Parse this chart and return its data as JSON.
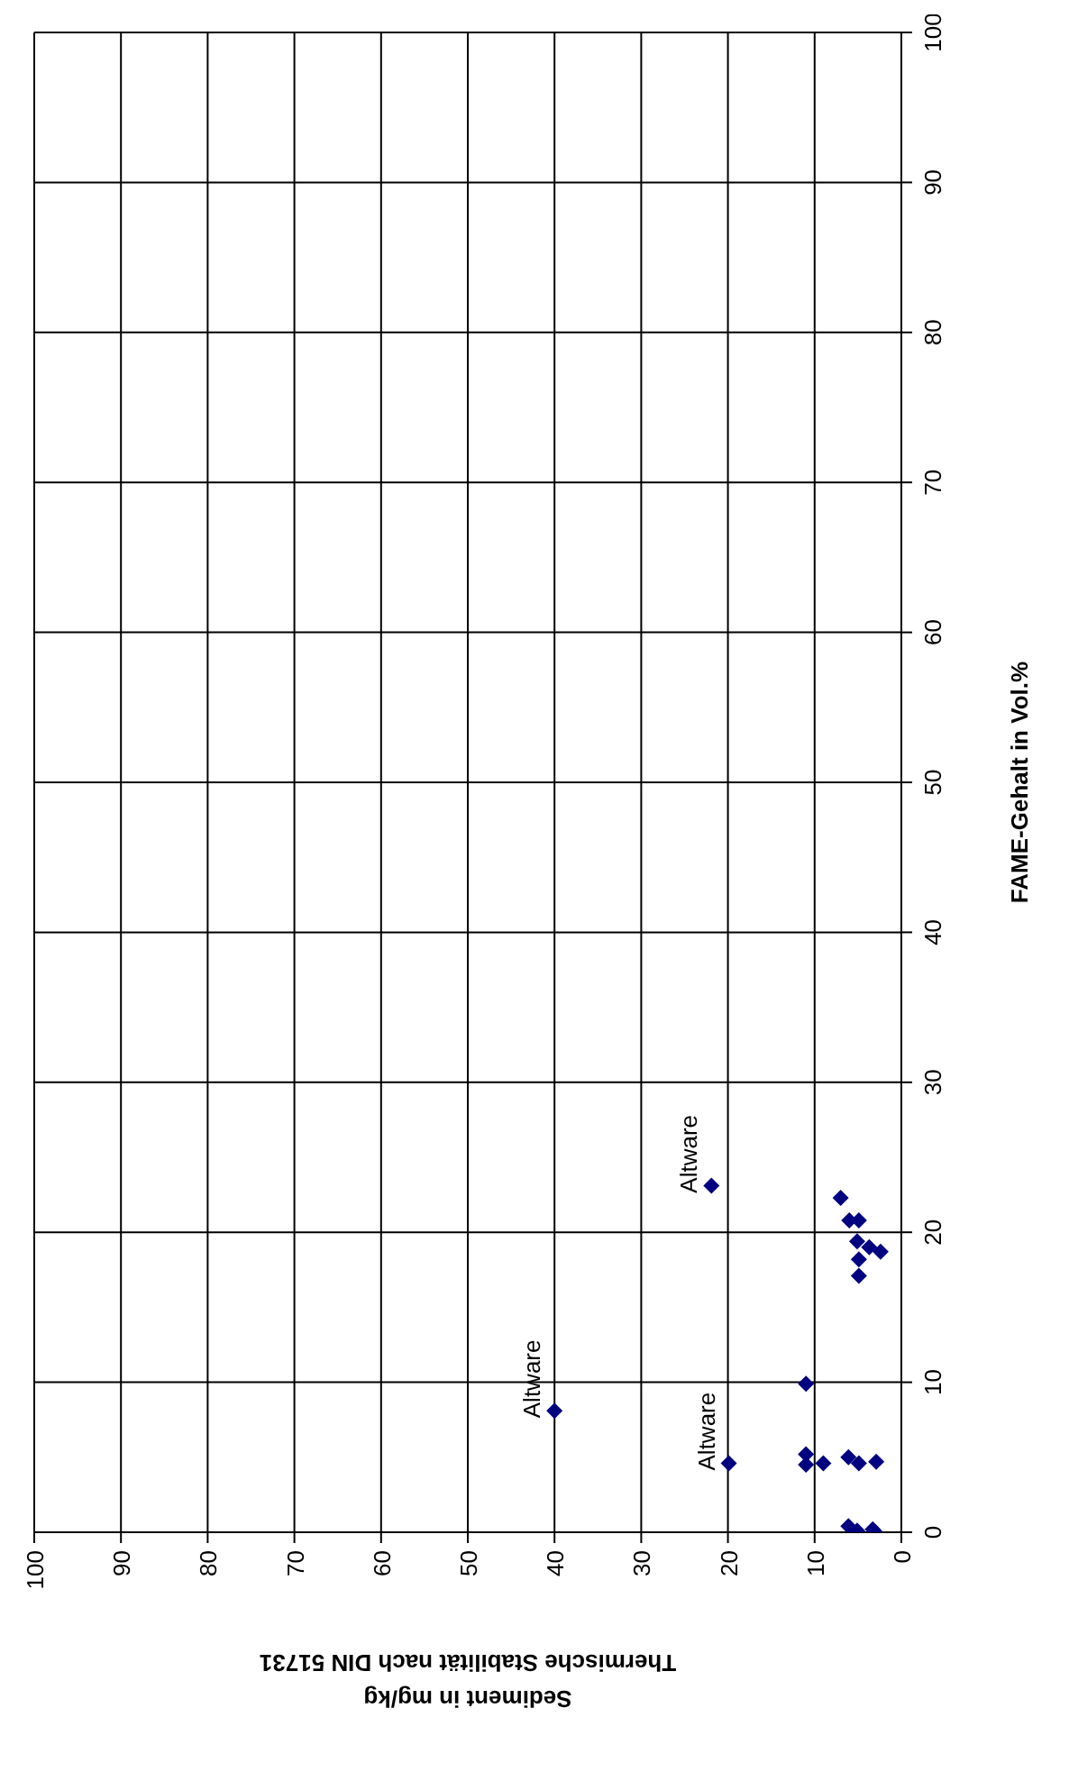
{
  "chart_data": {
    "type": "scatter",
    "xlabel": "Sediment in mg/kg\nThermische Stabilität nach DIN 51731",
    "ylabel": "FAME-Gehalt in Vol.%",
    "x": [
      40,
      19.9,
      21.9,
      7.0,
      6.0,
      4.9,
      5.1,
      3.7,
      2.4,
      4.9,
      4.9,
      11.0,
      11.0,
      11.0,
      9.0,
      6.1,
      4.9,
      2.9,
      6.1,
      5.1,
      3.3,
      3.0
    ],
    "series": [
      {
        "color": "#000080",
        "values": [
          8.1,
          4.6,
          23.1,
          22.3,
          20.8,
          20.8,
          19.4,
          19.0,
          18.7,
          18.2,
          17.1,
          9.9,
          5.2,
          4.5,
          4.6,
          5.0,
          4.6,
          4.7,
          0.4,
          0.1,
          0.2,
          0
        ]
      }
    ],
    "xlim": [
      100,
      0
    ],
    "xticks": [
      0,
      10,
      20,
      30,
      40,
      50,
      60,
      70,
      80,
      90,
      100
    ],
    "ylim": [
      0,
      100
    ],
    "yticks": [
      0,
      10,
      20,
      30,
      40,
      50,
      60,
      70,
      80,
      90,
      100
    ],
    "annotations": [
      {
        "text": "Altware",
        "x": 40,
        "y": 8.1
      },
      {
        "text": "Altware",
        "x": 19.9,
        "y": 4.6
      },
      {
        "text": "Altware",
        "x": 21.9,
        "y": 23.1
      }
    ],
    "grid": true,
    "legend": false,
    "marker": "diamond"
  }
}
